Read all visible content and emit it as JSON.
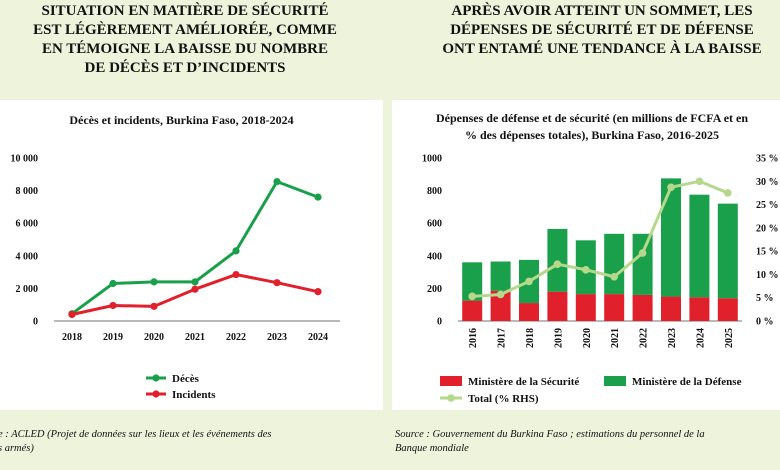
{
  "header_left": {
    "lines": [
      "SITUATION EN MATIÈRE DE SÉCURITÉ",
      "EST LÉGÈREMENT AMÉLIORÉE, COMME",
      "EN TÉMOIGNE LA BAISSE DU NOMBRE",
      "DE DÉCÈS ET D’INCIDENTS"
    ]
  },
  "header_right": {
    "lines": [
      "APRÈS AVOIR ATTEINT UN SOMMET, LES",
      "DÉPENSES DE SÉCURITÉ ET DE DÉFENSE",
      "ONT ENTAMÉ UNE TENDANCE À LA BAISSE"
    ]
  },
  "source_left": {
    "lines": [
      "e : ACLED (Projet de données sur les lieux et les événements des",
      "s armés)"
    ]
  },
  "source_right": {
    "lines": [
      "Source : Gouvernement du Burkina Faso ; estimations du personnel de la",
      "Banque mondiale"
    ]
  },
  "colors": {
    "green": "#1aa04b",
    "red": "#e0202a",
    "light_green": "#b5d88c",
    "bg": "#eef3dc"
  },
  "chart_data": [
    {
      "type": "line",
      "title": "Décès et incidents, Burkina Faso, 2018-2024",
      "x": [
        "2018",
        "2019",
        "2020",
        "2021",
        "2022",
        "2023",
        "2024"
      ],
      "series": [
        {
          "name": "Décès",
          "color": "#1aa04b",
          "values": [
            450,
            2300,
            2400,
            2400,
            4300,
            8550,
            7600
          ]
        },
        {
          "name": "Incidents",
          "color": "#e0202a",
          "values": [
            400,
            950,
            900,
            1950,
            2850,
            2350,
            1800
          ]
        }
      ],
      "y_ticks": [
        "0",
        "2 000",
        "4 000",
        "6 000",
        "8 000",
        "10 000"
      ],
      "ylim": [
        0,
        10000
      ],
      "grid": false,
      "legend": "bottom"
    },
    {
      "type": "bar",
      "title_lines": [
        "Dépenses de défense et de sécurité (en millions de FCFA et en",
        "% des dépenses totales), Burkina Faso, 2016-2025"
      ],
      "categories": [
        "2016",
        "2017",
        "2018",
        "2019",
        "2020",
        "2021",
        "2022",
        "2023",
        "2024",
        "2025"
      ],
      "stacked": true,
      "series": [
        {
          "name": "Ministère de la Sécurité",
          "color": "#e0202a",
          "values": [
            125,
            185,
            110,
            180,
            165,
            165,
            160,
            150,
            145,
            140
          ]
        },
        {
          "name": "Ministère de la Défense",
          "color": "#1aa04b",
          "values": [
            235,
            180,
            265,
            385,
            330,
            370,
            375,
            725,
            630,
            580
          ]
        }
      ],
      "line_series": {
        "name": "Total (% RHS)",
        "color": "#b5d88c",
        "values": [
          5.3,
          5.7,
          8.5,
          12.2,
          11.0,
          9.5,
          14.6,
          28.7,
          30.0,
          27.5
        ]
      },
      "y_ticks": [
        "0",
        "200",
        "400",
        "600",
        "800",
        "1000"
      ],
      "ylim": [
        0,
        1000
      ],
      "y2_ticks": [
        "0 %",
        "5 %",
        "10 %",
        "15 %",
        "20 %",
        "25 %",
        "30 %",
        "35 %"
      ],
      "y2lim": [
        0,
        35
      ],
      "grid": false,
      "legend": "bottom"
    }
  ]
}
